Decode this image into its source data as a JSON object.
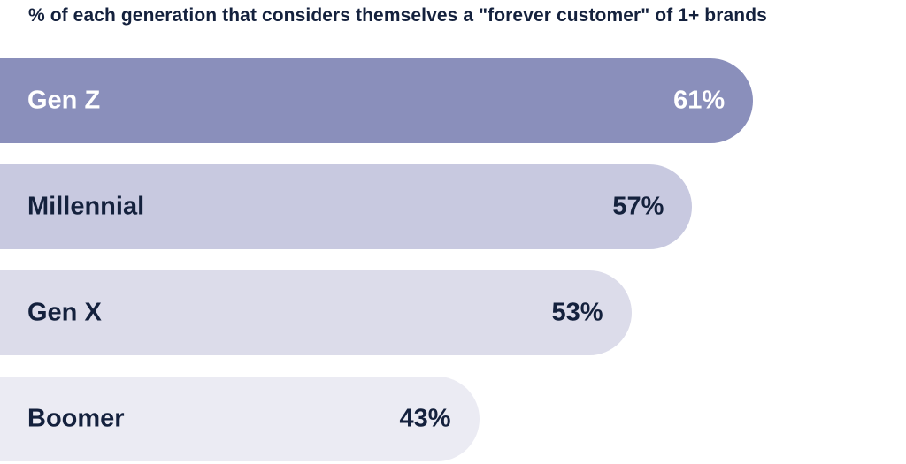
{
  "chart_data": {
    "type": "bar",
    "orientation": "horizontal",
    "title": "% of each generation that considers themselves a \"forever customer\" of 1+ brands",
    "categories": [
      "Gen Z",
      "Millennial",
      "Gen X",
      "Boomer"
    ],
    "values": [
      61,
      57,
      53,
      43
    ],
    "value_labels": [
      "61%",
      "57%",
      "53%",
      "43%"
    ],
    "colors": [
      "#8a8fbb",
      "#c8c9e0",
      "#dcdcea",
      "#ebebf3"
    ],
    "label_colors": [
      "#ffffff",
      "#14213d",
      "#14213d",
      "#14213d"
    ],
    "xlabel": "",
    "ylabel": "",
    "grid": false
  }
}
